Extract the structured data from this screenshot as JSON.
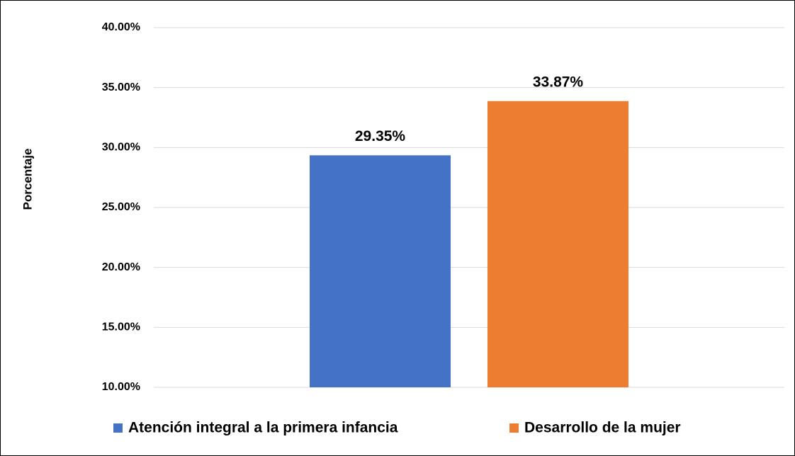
{
  "chart_data": {
    "type": "bar",
    "y_label": "Porcentaje",
    "categories": [
      null
    ],
    "series": [
      {
        "name": "Atención integral a la primera infancia",
        "color": "#4472c4",
        "values": [
          29.35
        ],
        "value_labels": [
          "29.35%"
        ]
      },
      {
        "name": "Desarrollo de la mujer",
        "color": "#ed7d31",
        "values": [
          33.87
        ],
        "value_labels": [
          "33.87%"
        ]
      }
    ],
    "ylim": [
      10,
      40
    ],
    "yticks": [
      {
        "value": 10,
        "label": "10.00%"
      },
      {
        "value": 15,
        "label": "15.00%"
      },
      {
        "value": 20,
        "label": "20.00%"
      },
      {
        "value": 25,
        "label": "25.00%"
      },
      {
        "value": 30,
        "label": "30.00%"
      },
      {
        "value": 35,
        "label": "35.00%"
      },
      {
        "value": 40,
        "label": "40.00%"
      }
    ],
    "grid": true
  }
}
